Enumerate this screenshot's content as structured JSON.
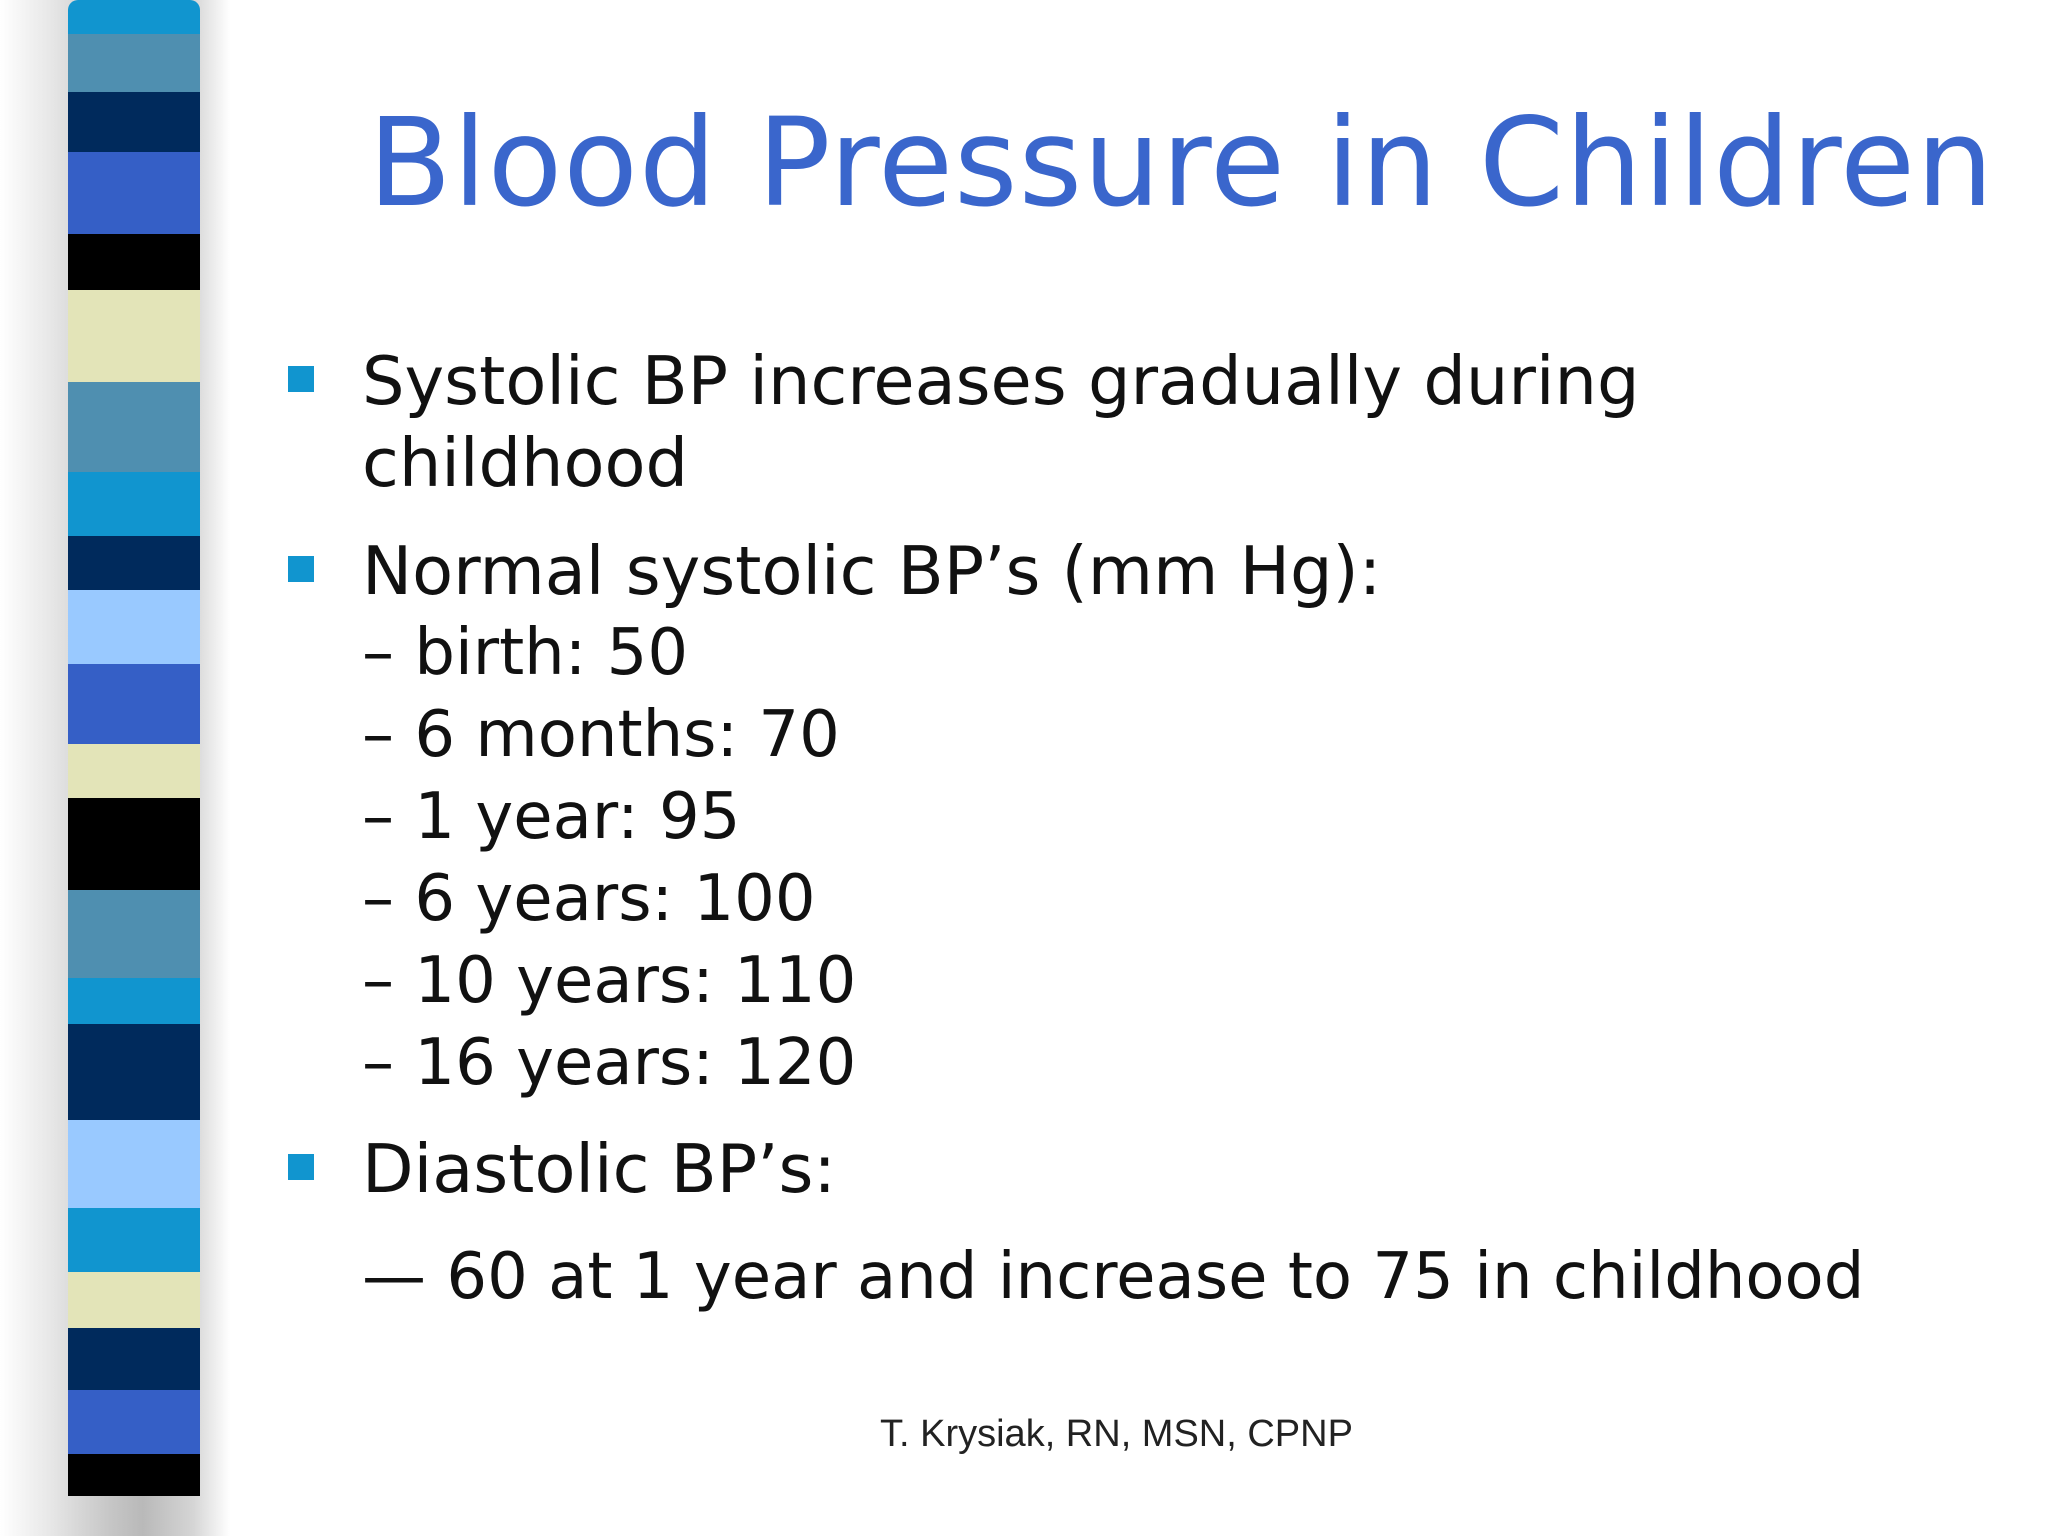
{
  "slide": {
    "title": "Blood Pressure in Children",
    "bullets": [
      {
        "text_line_1": "Systolic BP increases gradually during",
        "text_line_2": "childhood"
      },
      {
        "text": "Normal systolic BP’s (mm Hg):",
        "sub_items": [
          "– birth: 50",
          "– 6 months: 70",
          "– 1 year: 95",
          "– 6 years: 100",
          "– 10 years: 110",
          "– 16 years: 120"
        ]
      },
      {
        "text": "Diastolic BP’s:",
        "sub_items": [
          "— 60 at 1 year and increase to 75 in childhood"
        ]
      }
    ],
    "footer": "T. Krysiak, RN, MSN, CPNP"
  },
  "colors": {
    "title": "#3a66cc",
    "bullet_marker": "#1195cf",
    "body_text": "#111111",
    "stripe_palette": [
      "#1195cf",
      "#4f8fb0",
      "#002a5c",
      "#355fc6",
      "#000000",
      "#e3e4b8",
      "#99c9ff"
    ]
  }
}
